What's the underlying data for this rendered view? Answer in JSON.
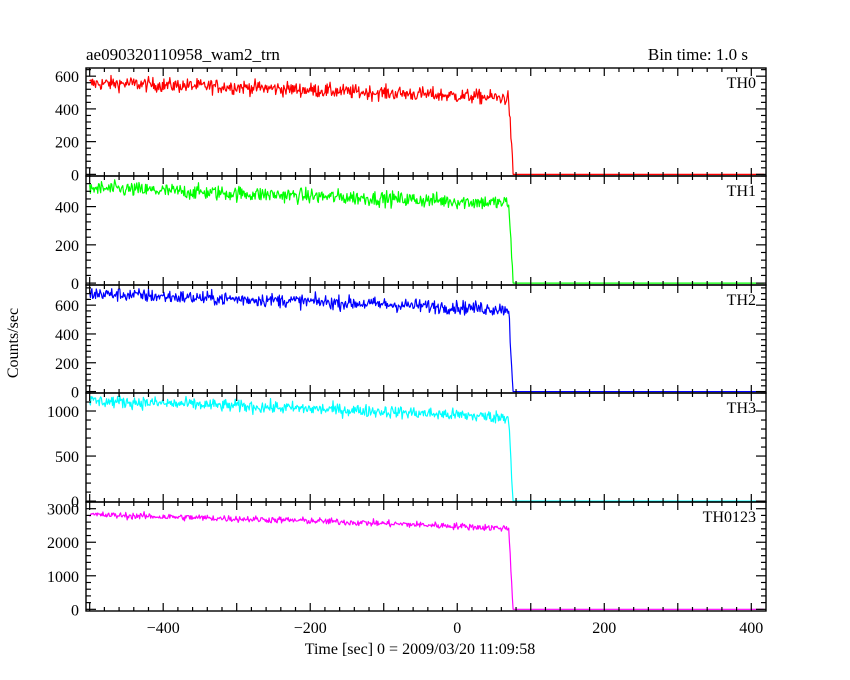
{
  "header": {
    "title": "ae090320110958_wam2_trn",
    "bin_time": "Bin time: 1.0 s"
  },
  "axes": {
    "xlabel": "Time [sec] 0 = 2009/03/20 11:09:58",
    "ylabel": "Counts/sec"
  },
  "chart_data": {
    "type": "line",
    "title": "ae090320110958_wam2_trn",
    "subtitle": "Bin time: 1.0 s",
    "xlabel": "Time [sec] 0 = 2009/03/20 11:09:58",
    "ylabel": "Counts/sec",
    "xlim": [
      -505,
      420
    ],
    "x_ticks": [
      -400,
      -200,
      0,
      200,
      400
    ],
    "x_tick_labels": [
      "−400",
      "−200",
      "0",
      "200",
      "400"
    ],
    "cutoff_time": 76,
    "data_start_time": -500,
    "grid": false,
    "panels": [
      {
        "name": "TH0",
        "color": "#ff0000",
        "ylim": [
          -10,
          650
        ],
        "y_ticks": [
          0,
          200,
          400,
          600
        ],
        "y_tick_labels": [
          "0",
          "200",
          "400",
          "600"
        ],
        "x": [
          -500,
          -450,
          -400,
          -350,
          -300,
          -250,
          -200,
          -150,
          -100,
          -50,
          0,
          50,
          70,
          76,
          80,
          150,
          200,
          300,
          400,
          420
        ],
        "y": [
          555,
          555,
          545,
          540,
          535,
          525,
          515,
          505,
          498,
          490,
          480,
          470,
          465,
          0,
          0,
          0,
          0,
          0,
          0,
          0
        ],
        "noise": 22
      },
      {
        "name": "TH1",
        "color": "#00ff00",
        "ylim": [
          -10,
          560
        ],
        "y_ticks": [
          0,
          200,
          400
        ],
        "y_tick_labels": [
          "0",
          "200",
          "400"
        ],
        "x": [
          -500,
          -450,
          -400,
          -350,
          -300,
          -250,
          -200,
          -150,
          -100,
          -50,
          0,
          50,
          70,
          76,
          80,
          150,
          200,
          300,
          400,
          420
        ],
        "y": [
          495,
          490,
          482,
          475,
          468,
          462,
          455,
          448,
          442,
          435,
          428,
          420,
          418,
          0,
          0,
          0,
          0,
          0,
          0,
          0
        ],
        "noise": 20
      },
      {
        "name": "TH2",
        "color": "#0000ff",
        "ylim": [
          -10,
          740
        ],
        "y_ticks": [
          0,
          200,
          400,
          600
        ],
        "y_tick_labels": [
          "0",
          "200",
          "400",
          "600"
        ],
        "x": [
          -500,
          -450,
          -400,
          -350,
          -300,
          -250,
          -200,
          -150,
          -100,
          -50,
          0,
          50,
          70,
          76,
          80,
          150,
          200,
          300,
          400,
          420
        ],
        "y": [
          680,
          672,
          660,
          650,
          642,
          635,
          625,
          615,
          605,
          595,
          585,
          575,
          572,
          0,
          0,
          0,
          0,
          0,
          0,
          0
        ],
        "noise": 24
      },
      {
        "name": "TH3",
        "color": "#00ffff",
        "ylim": [
          -10,
          1200
        ],
        "y_ticks": [
          0,
          500,
          1000
        ],
        "y_tick_labels": [
          "0",
          "500",
          "1000"
        ],
        "x": [
          -500,
          -450,
          -400,
          -350,
          -300,
          -250,
          -200,
          -150,
          -100,
          -50,
          0,
          50,
          70,
          76,
          80,
          150,
          200,
          300,
          400,
          420
        ],
        "y": [
          1110,
          1100,
          1085,
          1070,
          1055,
          1040,
          1025,
          1010,
          995,
          975,
          955,
          935,
          930,
          0,
          0,
          0,
          0,
          0,
          0,
          0
        ],
        "noise": 35
      },
      {
        "name": "TH0123",
        "color": "#ff00ff",
        "ylim": [
          -50,
          3200
        ],
        "y_ticks": [
          0,
          1000,
          2000,
          3000
        ],
        "y_tick_labels": [
          "0",
          "1000",
          "2000",
          "3000"
        ],
        "x": [
          -500,
          -450,
          -400,
          -350,
          -300,
          -250,
          -200,
          -150,
          -100,
          -50,
          0,
          50,
          70,
          76,
          80,
          150,
          200,
          300,
          400,
          420
        ],
        "y": [
          2820,
          2790,
          2760,
          2730,
          2700,
          2670,
          2640,
          2600,
          2560,
          2520,
          2480,
          2430,
          2420,
          0,
          0,
          0,
          0,
          0,
          0,
          0
        ],
        "noise": 50
      }
    ]
  }
}
